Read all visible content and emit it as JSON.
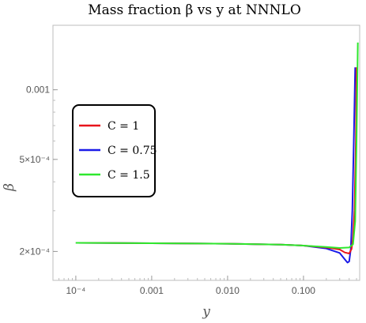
{
  "chart_data": {
    "type": "line",
    "title": "Mass fraction β vs y at NNNLO",
    "xlabel": "y",
    "ylabel": "β",
    "x_scale": "log",
    "y_scale": "log",
    "xlim": [
      5e-05,
      0.55
    ],
    "ylim": [
      0.00015,
      0.0019
    ],
    "x_ticks": [
      {
        "value": 0.0001,
        "label": "10⁻⁴"
      },
      {
        "value": 0.001,
        "label": "0.001"
      },
      {
        "value": 0.01,
        "label": "0.010"
      },
      {
        "value": 0.1,
        "label": "0.100"
      }
    ],
    "y_ticks": [
      {
        "value": 0.0002,
        "label": "2×10⁻⁴"
      },
      {
        "value": 0.0005,
        "label": "5×10⁻⁴"
      },
      {
        "value": 0.001,
        "label": "0.001"
      }
    ],
    "legend_position": "left-middle",
    "series": [
      {
        "name": "C = 1",
        "color": "#e8141b",
        "x": [
          0.0001,
          0.001,
          0.01,
          0.05,
          0.1,
          0.2,
          0.3,
          0.35,
          0.4,
          0.43,
          0.45,
          0.47,
          0.49,
          0.5
        ],
        "y": [
          0.000218,
          0.000217,
          0.000216,
          0.000214,
          0.000212,
          0.000208,
          0.000204,
          0.000198,
          0.000196,
          0.000205,
          0.00023,
          0.0003,
          0.0006,
          0.00125
        ]
      },
      {
        "name": "C = 0.75",
        "color": "#1a1ae8",
        "x": [
          0.0001,
          0.001,
          0.01,
          0.05,
          0.1,
          0.2,
          0.3,
          0.35,
          0.38,
          0.4,
          0.42,
          0.44,
          0.46,
          0.48
        ],
        "y": [
          0.000218,
          0.000217,
          0.000216,
          0.000214,
          0.000212,
          0.000206,
          0.000197,
          0.000185,
          0.000179,
          0.000181,
          0.000205,
          0.0003,
          0.0006,
          0.00125
        ]
      },
      {
        "name": "C = 1.5",
        "color": "#2ee82e",
        "x": [
          0.0001,
          0.001,
          0.01,
          0.05,
          0.1,
          0.2,
          0.3,
          0.4,
          0.45,
          0.48,
          0.5,
          0.52
        ],
        "y": [
          0.000218,
          0.000217,
          0.000216,
          0.000214,
          0.000212,
          0.000209,
          0.000207,
          0.000208,
          0.000215,
          0.00027,
          0.0006,
          0.0016
        ]
      }
    ]
  }
}
